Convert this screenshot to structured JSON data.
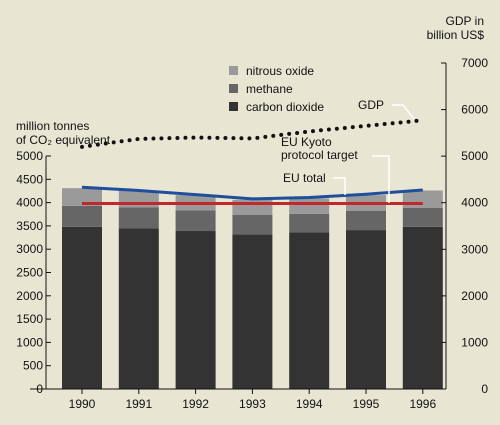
{
  "chart_data": {
    "type": "bar",
    "categories": [
      "1990",
      "1991",
      "1992",
      "1993",
      "1994",
      "1995",
      "1996"
    ],
    "left_axis": {
      "label_lines": [
        "million tonnes",
        "of CO₂ equivalent"
      ],
      "ylim": [
        0,
        5000
      ],
      "ticks": [
        "0",
        "500",
        "1000",
        "1500",
        "2000",
        "2500",
        "3000",
        "3500",
        "4000",
        "4500",
        "5000"
      ]
    },
    "right_axis": {
      "label_lines": [
        "GDP in",
        "billion US$"
      ],
      "ylim": [
        0,
        7000
      ],
      "ticks": [
        "0",
        "1000",
        "2000",
        "3000",
        "4000",
        "5000",
        "6000",
        "7000"
      ]
    },
    "series": [
      {
        "name": "carbon dioxide",
        "color": "#333333",
        "values": [
          3480,
          3450,
          3390,
          3320,
          3360,
          3410,
          3480
        ]
      },
      {
        "name": "methane",
        "color": "#666666",
        "values": [
          450,
          450,
          440,
          420,
          400,
          410,
          410
        ]
      },
      {
        "name": "nitrous oxide",
        "color": "#9a9a9a",
        "values": [
          380,
          360,
          330,
          320,
          330,
          340,
          370
        ]
      }
    ],
    "lines": [
      {
        "name": "EU total",
        "color": "#1f4e9c",
        "style": "solid",
        "axis": "left",
        "values": [
          4330,
          4260,
          4170,
          4080,
          4110,
          4180,
          4270
        ]
      },
      {
        "name": "EU Kyoto protocol target",
        "label_lines": [
          "EU Kyoto",
          "protocol target"
        ],
        "color": "#c0282d",
        "style": "solid",
        "axis": "left",
        "values": [
          3980,
          3980,
          3980,
          3980,
          3980,
          3980,
          3980
        ]
      },
      {
        "name": "GDP",
        "color": "#111111",
        "style": "dotted",
        "axis": "right",
        "values": [
          5200,
          5370,
          5400,
          5380,
          5530,
          5650,
          5770
        ]
      }
    ],
    "legend_placement": "top-center",
    "grid": false
  }
}
